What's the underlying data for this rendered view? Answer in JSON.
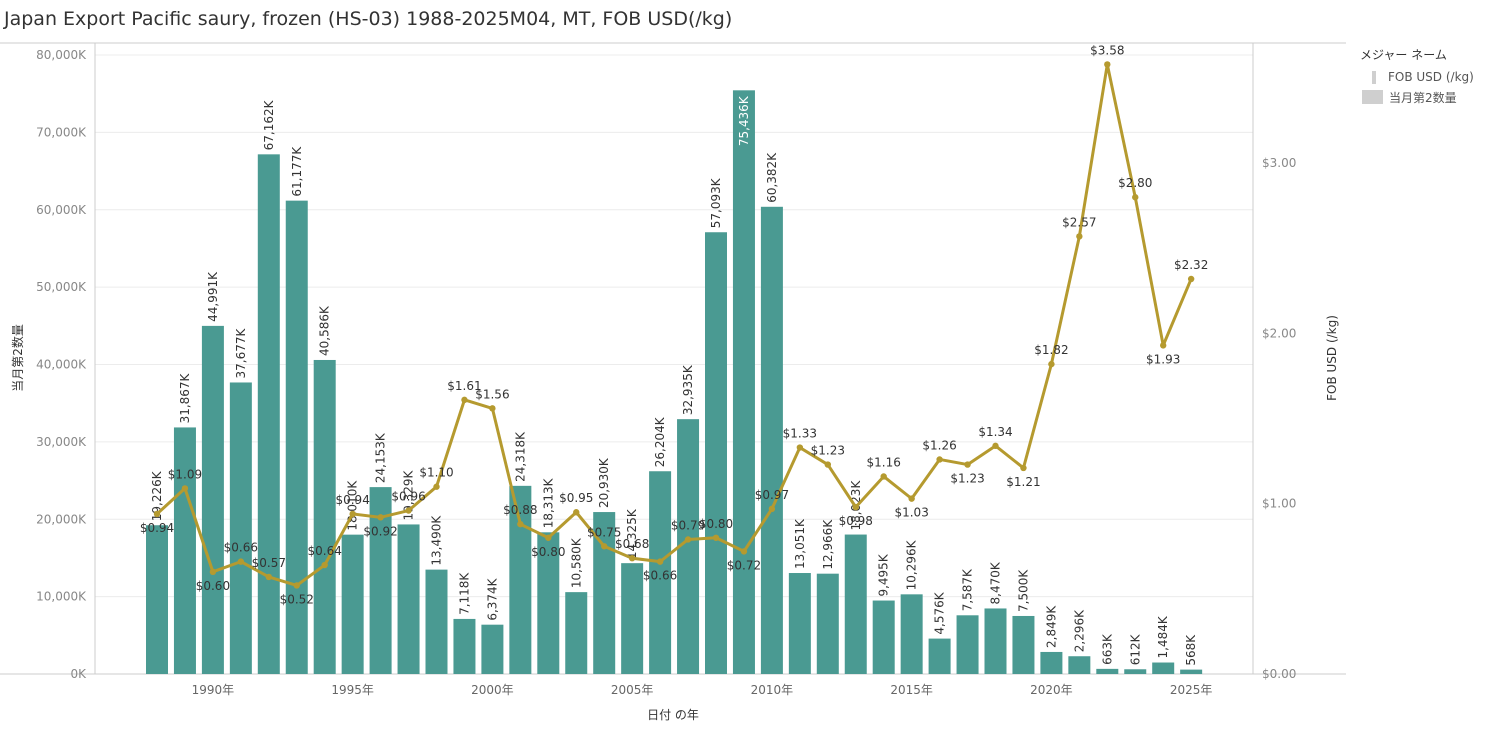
{
  "title": "Japan Export Pacific saury, frozen (HS-03) 1988-2025M04, MT, FOB USD(/kg)",
  "legend": {
    "title": "メジャー ネーム",
    "items": [
      {
        "label": "FOB USD (/kg)",
        "kind": "line"
      },
      {
        "label": "当月第2数量",
        "kind": "bar"
      }
    ]
  },
  "colors": {
    "bar": "#4a9a92",
    "line": "#b59a2f",
    "grid": "#ececec",
    "axis": "#cccccc"
  },
  "chart_data": {
    "type": "bar+line",
    "title": "Japan Export Pacific saury, frozen (HS-03) 1988-2025M04, MT, FOB USD(/kg)",
    "xlabel": "日付 の年",
    "ylabel_left": "当月第2数量",
    "ylabel_right": "FOB USD (/kg)",
    "ylim_left": [
      0,
      80000
    ],
    "ylim_right": [
      0,
      3.7
    ],
    "x_ticks": [
      "1990年",
      "1995年",
      "2000年",
      "2005年",
      "2010年",
      "2015年",
      "2020年",
      "2025年"
    ],
    "x_tick_years": [
      1990,
      1995,
      2000,
      2005,
      2010,
      2015,
      2020,
      2025
    ],
    "y_ticks_left": [
      "0K",
      "10,000K",
      "20,000K",
      "30,000K",
      "40,000K",
      "50,000K",
      "60,000K",
      "70,000K",
      "80,000K"
    ],
    "y_ticks_left_values": [
      0,
      10000,
      20000,
      30000,
      40000,
      50000,
      60000,
      70000,
      80000
    ],
    "y_ticks_right": [
      "$0.00",
      "$1.00",
      "$2.00",
      "$3.00"
    ],
    "y_ticks_right_values": [
      0,
      1,
      2,
      3
    ],
    "years": [
      1988,
      1989,
      1990,
      1991,
      1992,
      1993,
      1994,
      1995,
      1996,
      1997,
      1998,
      1999,
      2000,
      2001,
      2002,
      2003,
      2004,
      2005,
      2006,
      2007,
      2008,
      2009,
      2010,
      2011,
      2012,
      2013,
      2014,
      2015,
      2016,
      2017,
      2018,
      2019,
      2020,
      2021,
      2022,
      2023,
      2024,
      2025
    ],
    "series": [
      {
        "name": "当月第2数量",
        "kind": "bar",
        "values": [
          19226,
          31867,
          44991,
          37677,
          67162,
          61177,
          40586,
          18010,
          24153,
          19329,
          13490,
          7118,
          6374,
          24318,
          18313,
          10580,
          20930,
          14325,
          26204,
          32935,
          57093,
          75436,
          60382,
          13051,
          12966,
          18023,
          9495,
          10296,
          4576,
          7587,
          8470,
          7500,
          2849,
          2296,
          663,
          612,
          1484,
          568
        ],
        "labels": [
          "19,226K",
          "31,867K",
          "44,991K",
          "37,677K",
          "67,162K",
          "61,177K",
          "40,586K",
          "18,010K",
          "24,153K",
          "19,329K",
          "13,490K",
          "7,118K",
          "6,374K",
          "24,318K",
          "18,313K",
          "10,580K",
          "20,930K",
          "14,325K",
          "26,204K",
          "32,935K",
          "57,093K",
          "75,436K",
          "60,382K",
          "13,051K",
          "12,966K",
          "18,023K",
          "9,495K",
          "10,296K",
          "4,576K",
          "7,587K",
          "8,470K",
          "7,500K",
          "2,849K",
          "2,296K",
          "663K",
          "612K",
          "1,484K",
          "568K"
        ]
      },
      {
        "name": "FOB USD (/kg)",
        "kind": "line",
        "values": [
          0.94,
          1.09,
          0.6,
          0.66,
          0.57,
          0.52,
          0.64,
          0.94,
          0.92,
          0.96,
          1.1,
          1.61,
          1.56,
          0.88,
          0.8,
          0.95,
          0.75,
          0.68,
          0.66,
          0.79,
          0.8,
          0.72,
          0.97,
          1.33,
          1.23,
          0.98,
          1.16,
          1.03,
          1.26,
          1.23,
          1.34,
          1.21,
          1.82,
          2.57,
          3.58,
          2.8,
          1.93,
          2.32
        ],
        "labels": [
          "$0.94",
          "$1.09",
          "$0.60",
          "$0.66",
          "$0.57",
          "$0.52",
          "$0.64",
          "$0.94",
          "$0.92",
          "$0.96",
          "$1.10",
          "$1.61",
          "$1.56",
          "$0.88",
          "$0.80",
          "$0.95",
          "$0.75",
          "$0.68",
          "$0.66",
          "$0.79",
          "$0.80",
          "$0.72",
          "$0.97",
          "$1.33",
          "$1.23",
          "$0.98",
          "$1.16",
          "$1.03",
          "$1.26",
          "$1.23",
          "$1.34",
          "$1.21",
          "$1.82",
          "$2.57",
          "$3.58",
          "$2.80",
          "$1.93",
          "$2.32"
        ]
      }
    ],
    "legend_position": "right",
    "grid": true
  }
}
